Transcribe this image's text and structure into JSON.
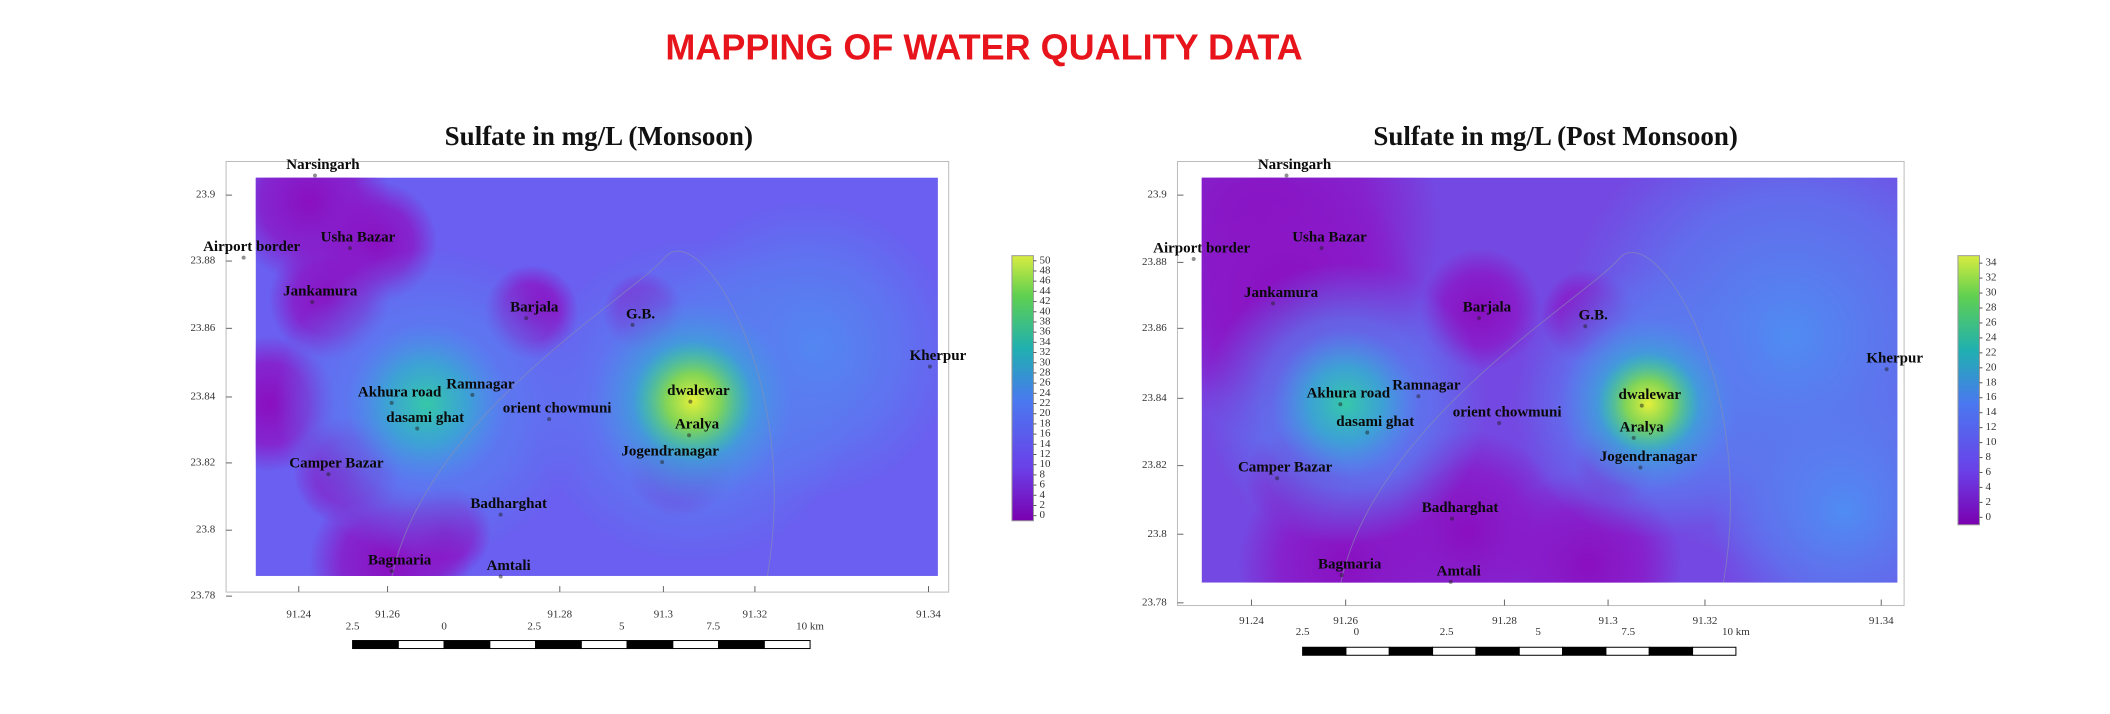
{
  "title": "MAPPING OF WATER QUALITY DATA",
  "maps": [
    {
      "title": "Sulfate in mg/L (Monsoon)",
      "places": [
        "Narsingarh",
        "Usha Bazar",
        "Airport border",
        "Jankamura",
        "Barjala",
        "G.B.",
        "Kherpur",
        "Ramnagar",
        "Akhura road",
        "dwalewar",
        "orient chowmuni",
        "dasami ghat",
        "Aralya",
        "Jogendranagar",
        "Camper Bazar",
        "Badharghat",
        "Bagmaria",
        "Amtali"
      ],
      "lat_ticks": [
        23.9,
        23.88,
        23.86,
        23.84,
        23.82,
        23.8,
        23.78
      ],
      "lon_ticks": [
        91.24,
        91.26,
        91.28,
        91.3,
        91.32,
        91.34
      ],
      "colorbar_ticks": [
        50,
        48,
        46,
        44,
        42,
        40,
        38,
        36,
        34,
        32,
        30,
        28,
        26,
        24,
        22,
        20,
        18,
        16,
        14,
        12,
        10,
        8,
        6,
        4,
        2,
        0
      ],
      "scale_labels": [
        "2.5",
        "0",
        "2.5",
        "5",
        "7.5",
        "10 km"
      ]
    },
    {
      "title": "Sulfate in mg/L (Post Monsoon)",
      "places": [
        "Narsingarh",
        "Usha Bazar",
        "Airport border",
        "Jankamura",
        "Barjala",
        "G.B.",
        "Kherpur",
        "Ramnagar",
        "Akhura road",
        "dwalewar",
        "orient chowmuni",
        "dasami ghat",
        "Aralya",
        "Jogendranagar",
        "Camper Bazar",
        "Badharghat",
        "Bagmaria",
        "Amtali"
      ],
      "lat_ticks": [
        23.9,
        23.88,
        23.86,
        23.84,
        23.82,
        23.8,
        23.78
      ],
      "lon_ticks": [
        91.24,
        91.26,
        91.28,
        91.3,
        91.32,
        91.34
      ],
      "colorbar_ticks": [
        34,
        32,
        30,
        28,
        26,
        24,
        22,
        20,
        18,
        16,
        14,
        12,
        10,
        8,
        6,
        4,
        2,
        0
      ],
      "scale_labels": [
        "2.5",
        "0",
        "2.5",
        "5",
        "7.5",
        "10 km"
      ]
    }
  ]
}
